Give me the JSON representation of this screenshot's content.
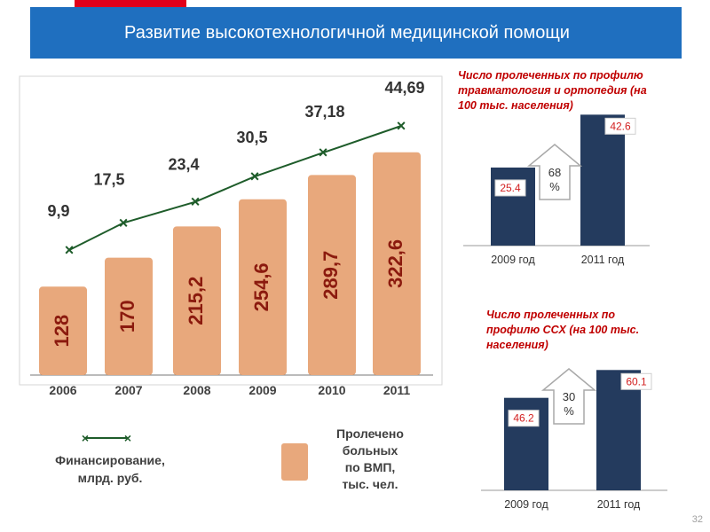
{
  "slide": {
    "title": "Развитие высокотехнологичной медицинской помощи",
    "number": "32",
    "colors": {
      "title_bg": "#1f6fbf",
      "accent_red": "#e2001a"
    }
  },
  "chart_data": [
    {
      "type": "bar",
      "categories": [
        "2006",
        "2007",
        "2008",
        "2009",
        "2010",
        "2011"
      ],
      "series": [
        {
          "name": "Пролечено больных по ВМП, тыс. чел.",
          "values": [
            128,
            170,
            215.2,
            254.6,
            289.7,
            322.6
          ],
          "labels": [
            "128",
            "170",
            "215,2",
            "254,6",
            "289,7",
            "322,6"
          ],
          "color": "#e8a87c"
        },
        {
          "name": "Финансирование, млрд. руб.",
          "type": "line",
          "values": [
            9.9,
            17.5,
            23.4,
            30.5,
            37.18,
            44.69
          ],
          "labels": [
            "9,9",
            "17,5",
            "23,4",
            "30,5",
            "37,18",
            "44,69"
          ],
          "color": "#1e5c2a"
        }
      ],
      "ylim_bars": [
        0,
        330
      ],
      "ylim_line": [
        0,
        50
      ],
      "legend": [
        {
          "text": "Финансирование, млрд. руб."
        },
        {
          "text": "Пролечено больных по ВМП, тыс. чел."
        }
      ]
    },
    {
      "type": "bar",
      "title": "Число пролеченных по профилю травматология и ортопедия (на 100 тыс. населения)",
      "categories": [
        "2009 год",
        "2011 год"
      ],
      "values": [
        25.4,
        42.6
      ],
      "labels": [
        "25.4",
        "42.6"
      ],
      "ylim": [
        0,
        45
      ],
      "annotation": "68 %",
      "color": "#243b5e"
    },
    {
      "type": "bar",
      "title": "Число пролеченных по профилю ССХ (на 100 тыс. населения)",
      "categories": [
        "2009 год",
        "2011 год"
      ],
      "values": [
        46.2,
        60.1
      ],
      "labels": [
        "46.2",
        "60.1"
      ],
      "ylim": [
        0,
        62
      ],
      "annotation": "30 %",
      "color": "#243b5e"
    }
  ]
}
